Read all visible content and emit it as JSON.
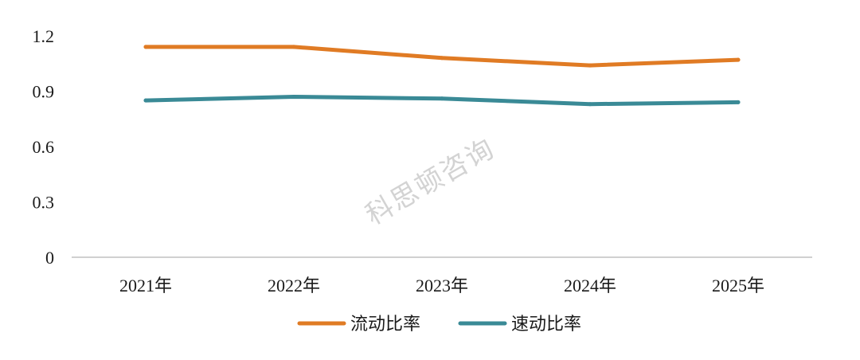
{
  "watermark": "科思顿咨询",
  "chart_data": {
    "type": "line",
    "categories": [
      "2021年",
      "2022年",
      "2023年",
      "2024年",
      "2025年"
    ],
    "series": [
      {
        "name": "流动比率",
        "values": [
          1.14,
          1.14,
          1.08,
          1.04,
          1.07
        ],
        "color": "#e07b24"
      },
      {
        "name": "速动比率",
        "values": [
          0.85,
          0.87,
          0.86,
          0.83,
          0.84
        ],
        "color": "#3a8a96"
      }
    ],
    "yticks": [
      "1.2",
      "0.9",
      "0.6",
      "0.3",
      "0"
    ],
    "ylim": [
      0,
      1.2
    ],
    "grid": false,
    "legend_position": "bottom",
    "title": "",
    "xlabel": "",
    "ylabel": ""
  }
}
